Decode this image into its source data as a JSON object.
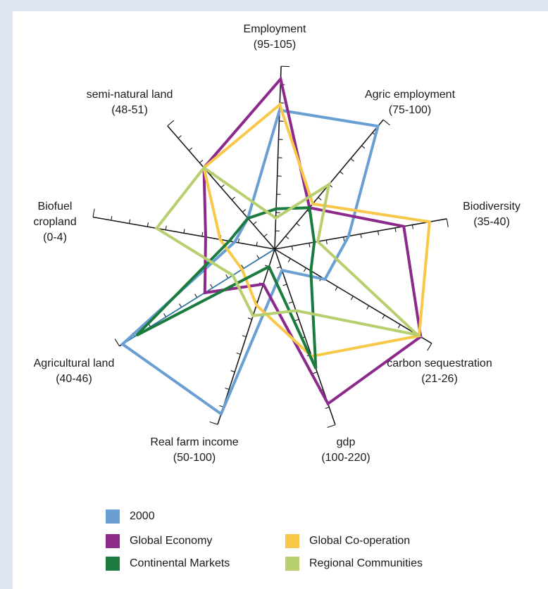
{
  "chart_data": {
    "type": "radar",
    "axes": [
      {
        "name": "Employment",
        "range": "(95-105)"
      },
      {
        "name": "Agric employment",
        "range": "(75-100)"
      },
      {
        "name": "Biodiversity",
        "range": "(35-40)"
      },
      {
        "name": "carbon sequestration",
        "range": "(21-26)"
      },
      {
        "name": "gdp",
        "range": "(100-220)"
      },
      {
        "name": "Real farm income",
        "range": "(50-100)"
      },
      {
        "name": "Agricultural land",
        "range": "(40-46)"
      },
      {
        "name": "Biofuel cropland",
        "range": "(0-4)"
      },
      {
        "name": "semi-natural land",
        "range": "(48-51)"
      }
    ],
    "scale": "each axis normalized 0-1 from centre (minimum) to tip (maximum)",
    "series": [
      {
        "name": "2000",
        "color": "#6a9fd4",
        "values": [
          0.76,
          0.95,
          0.43,
          0.32,
          0.12,
          0.94,
          0.98,
          0.22,
          0.25
        ]
      },
      {
        "name": "Global Economy",
        "color": "#8c2a8c",
        "values": [
          0.93,
          0.32,
          0.75,
          0.93,
          0.88,
          0.2,
          0.45,
          0.38,
          0.66
        ]
      },
      {
        "name": "Global Co-operation",
        "color": "#f7c84a",
        "values": [
          0.79,
          0.35,
          0.9,
          0.92,
          0.61,
          0.32,
          0.21,
          0.3,
          0.66
        ]
      },
      {
        "name": "Continental Markets",
        "color": "#1b7a3e",
        "values": [
          0.22,
          0.32,
          0.23,
          0.23,
          0.68,
          0.1,
          0.89,
          0.25,
          0.25
        ]
      },
      {
        "name": "Regional Communities",
        "color": "#b7cf6e",
        "values": [
          0.17,
          0.5,
          0.25,
          0.91,
          0.35,
          0.38,
          0.27,
          0.65,
          0.66
        ]
      }
    ],
    "legend": "bottom-left, two columns"
  }
}
